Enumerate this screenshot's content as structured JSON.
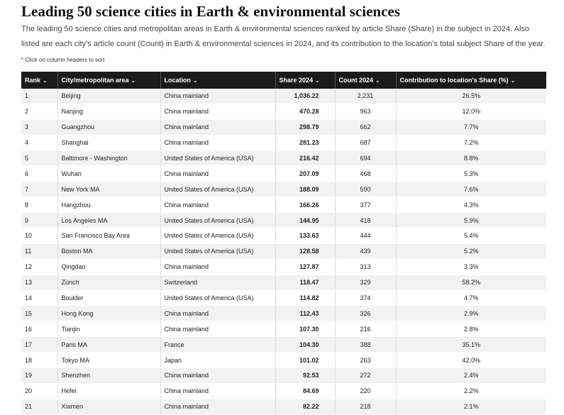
{
  "title": "Leading 50 science cities in Earth & environmental sciences",
  "description": "The leading 50 science cities and metropolitan areas in Earth & environmental sciences ranked by article Share (Share) in the subject in 2024. Also listed are each city's article count (Count) in Earth & environmental sciences in 2024, and its contribution to the location's total subject Share of the year.",
  "hint": "* Click on column headers to sort",
  "sort_glyph": "⌄",
  "columns": {
    "rank": "Rank",
    "city": "City/metropolitan area",
    "location": "Location",
    "share": "Share 2024",
    "count": "Count 2024",
    "contribution": "Contribution to location's Share (%)"
  },
  "rows": [
    {
      "rank": "1",
      "city": "Beijing",
      "location": "China mainland",
      "share": "1,036.22",
      "count": "2,231",
      "contribution": "26.5%"
    },
    {
      "rank": "2",
      "city": "Nanjing",
      "location": "China mainland",
      "share": "470.28",
      "count": "963",
      "contribution": "12.0%"
    },
    {
      "rank": "3",
      "city": "Guangzhou",
      "location": "China mainland",
      "share": "298.79",
      "count": "662",
      "contribution": "7.7%"
    },
    {
      "rank": "4",
      "city": "Shanghai",
      "location": "China mainland",
      "share": "281.23",
      "count": "687",
      "contribution": "7.2%"
    },
    {
      "rank": "5",
      "city": "Baltimore - Washington",
      "location": "United States of America (USA)",
      "share": "216.42",
      "count": "694",
      "contribution": "8.8%"
    },
    {
      "rank": "6",
      "city": "Wuhan",
      "location": "China mainland",
      "share": "207.09",
      "count": "468",
      "contribution": "5.3%"
    },
    {
      "rank": "7",
      "city": "New York MA",
      "location": "United States of America (USA)",
      "share": "188.09",
      "count": "590",
      "contribution": "7.6%"
    },
    {
      "rank": "8",
      "city": "Hangzhou",
      "location": "China mainland",
      "share": "166.26",
      "count": "377",
      "contribution": "4.3%"
    },
    {
      "rank": "9",
      "city": "Los Angeles MA",
      "location": "United States of America (USA)",
      "share": "144.95",
      "count": "418",
      "contribution": "5.9%"
    },
    {
      "rank": "10",
      "city": "San Francisco Bay Area",
      "location": "United States of America (USA)",
      "share": "133.63",
      "count": "444",
      "contribution": "5.4%"
    },
    {
      "rank": "11",
      "city": "Boston MA",
      "location": "United States of America (USA)",
      "share": "128.58",
      "count": "439",
      "contribution": "5.2%"
    },
    {
      "rank": "12",
      "city": "Qingdao",
      "location": "China mainland",
      "share": "127.87",
      "count": "313",
      "contribution": "3.3%"
    },
    {
      "rank": "13",
      "city": "Zürich",
      "location": "Switzerland",
      "share": "118.47",
      "count": "329",
      "contribution": "58.2%"
    },
    {
      "rank": "14",
      "city": "Boulder",
      "location": "United States of America (USA)",
      "share": "114.82",
      "count": "374",
      "contribution": "4.7%"
    },
    {
      "rank": "15",
      "city": "Hong Kong",
      "location": "China mainland",
      "share": "112.43",
      "count": "326",
      "contribution": "2.9%"
    },
    {
      "rank": "16",
      "city": "Tianjin",
      "location": "China mainland",
      "share": "107.30",
      "count": "216",
      "contribution": "2.8%"
    },
    {
      "rank": "17",
      "city": "Paris MA",
      "location": "France",
      "share": "104.30",
      "count": "388",
      "contribution": "35.1%"
    },
    {
      "rank": "18",
      "city": "Tokyo MA",
      "location": "Japan",
      "share": "101.02",
      "count": "263",
      "contribution": "42.0%"
    },
    {
      "rank": "19",
      "city": "Shenzhen",
      "location": "China mainland",
      "share": "92.53",
      "count": "272",
      "contribution": "2.4%"
    },
    {
      "rank": "20",
      "city": "Hefei",
      "location": "China mainland",
      "share": "84.69",
      "count": "220",
      "contribution": "2.2%"
    },
    {
      "rank": "21",
      "city": "Xiamen",
      "location": "China mainland",
      "share": "82.22",
      "count": "218",
      "contribution": "2.1%"
    }
  ]
}
